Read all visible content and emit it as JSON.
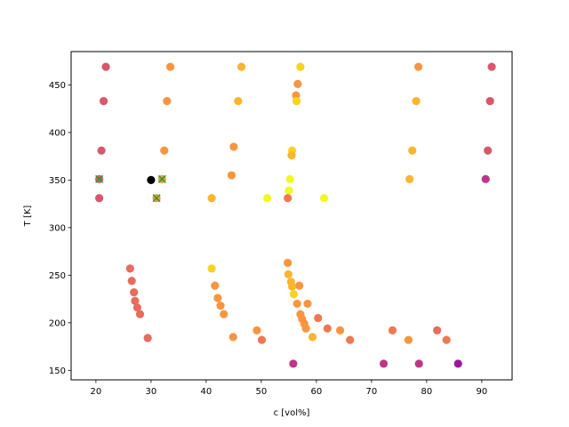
{
  "chart_data": {
    "type": "scatter",
    "title": "",
    "xlabel": "c [vol%]",
    "ylabel": "T [K]",
    "xlim": [
      15.5,
      95.5
    ],
    "ylim": [
      140,
      485
    ],
    "xticks": [
      20,
      30,
      40,
      50,
      60,
      70,
      80,
      90
    ],
    "yticks": [
      150,
      200,
      250,
      300,
      350,
      400,
      450
    ],
    "grid": false,
    "colors": {
      "purple": "#9c179e",
      "magenta": "#bd3786",
      "rose": "#d8576b",
      "salmon": "#e66c5c",
      "coral": "#ed7953",
      "orange": "#f89540",
      "amber": "#fdb42f",
      "gold": "#f9d221",
      "yellow": "#f0f921",
      "black": "#000000",
      "marker_x": "#2ca02c"
    },
    "points": [
      {
        "x": 21.8,
        "y": 469,
        "c": "rose"
      },
      {
        "x": 33.5,
        "y": 469,
        "c": "orange"
      },
      {
        "x": 46.4,
        "y": 469,
        "c": "amber"
      },
      {
        "x": 57.1,
        "y": 469,
        "c": "gold"
      },
      {
        "x": 78.5,
        "y": 469,
        "c": "orange"
      },
      {
        "x": 91.8,
        "y": 469,
        "c": "rose"
      },
      {
        "x": 56.6,
        "y": 451,
        "c": "orange"
      },
      {
        "x": 56.3,
        "y": 439,
        "c": "orange"
      },
      {
        "x": 21.4,
        "y": 433,
        "c": "rose"
      },
      {
        "x": 32.9,
        "y": 433,
        "c": "orange"
      },
      {
        "x": 45.8,
        "y": 433,
        "c": "amber"
      },
      {
        "x": 56.4,
        "y": 433,
        "c": "gold"
      },
      {
        "x": 78.1,
        "y": 433,
        "c": "amber"
      },
      {
        "x": 91.5,
        "y": 433,
        "c": "rose"
      },
      {
        "x": 45.0,
        "y": 385,
        "c": "orange"
      },
      {
        "x": 21.0,
        "y": 381,
        "c": "rose"
      },
      {
        "x": 32.4,
        "y": 381,
        "c": "orange"
      },
      {
        "x": 55.6,
        "y": 381,
        "c": "gold"
      },
      {
        "x": 77.4,
        "y": 381,
        "c": "amber"
      },
      {
        "x": 91.1,
        "y": 381,
        "c": "rose"
      },
      {
        "x": 55.5,
        "y": 376,
        "c": "amber"
      },
      {
        "x": 44.6,
        "y": 355,
        "c": "orange"
      },
      {
        "x": 20.6,
        "y": 351,
        "c": "rose"
      },
      {
        "x": 32.0,
        "y": 351,
        "c": "orange"
      },
      {
        "x": 30.0,
        "y": 350,
        "c": "black"
      },
      {
        "x": 55.2,
        "y": 351,
        "c": "yellow"
      },
      {
        "x": 76.9,
        "y": 351,
        "c": "amber"
      },
      {
        "x": 90.7,
        "y": 351,
        "c": "magenta"
      },
      {
        "x": 55.0,
        "y": 339,
        "c": "yellow"
      },
      {
        "x": 20.6,
        "y": 331,
        "c": "rose"
      },
      {
        "x": 31.0,
        "y": 331,
        "c": "orange"
      },
      {
        "x": 41.0,
        "y": 331,
        "c": "amber"
      },
      {
        "x": 51.1,
        "y": 331,
        "c": "yellow"
      },
      {
        "x": 54.8,
        "y": 331,
        "c": "coral"
      },
      {
        "x": 61.4,
        "y": 331,
        "c": "yellow"
      },
      {
        "x": 54.8,
        "y": 263,
        "c": "orange"
      },
      {
        "x": 26.2,
        "y": 257,
        "c": "salmon"
      },
      {
        "x": 41.0,
        "y": 257,
        "c": "gold"
      },
      {
        "x": 54.9,
        "y": 251,
        "c": "amber"
      },
      {
        "x": 26.5,
        "y": 244,
        "c": "salmon"
      },
      {
        "x": 55.4,
        "y": 243,
        "c": "amber"
      },
      {
        "x": 41.6,
        "y": 239,
        "c": "orange"
      },
      {
        "x": 56.9,
        "y": 239,
        "c": "orange"
      },
      {
        "x": 55.6,
        "y": 238,
        "c": "amber"
      },
      {
        "x": 26.9,
        "y": 232,
        "c": "salmon"
      },
      {
        "x": 55.9,
        "y": 230,
        "c": "gold"
      },
      {
        "x": 42.1,
        "y": 226,
        "c": "orange"
      },
      {
        "x": 27.1,
        "y": 223,
        "c": "salmon"
      },
      {
        "x": 56.5,
        "y": 220,
        "c": "orange"
      },
      {
        "x": 58.4,
        "y": 220,
        "c": "orange"
      },
      {
        "x": 42.6,
        "y": 218,
        "c": "orange"
      },
      {
        "x": 27.5,
        "y": 216,
        "c": "salmon"
      },
      {
        "x": 28.0,
        "y": 209,
        "c": "salmon"
      },
      {
        "x": 43.2,
        "y": 209,
        "c": "orange"
      },
      {
        "x": 57.1,
        "y": 209,
        "c": "orange"
      },
      {
        "x": 57.4,
        "y": 204,
        "c": "orange"
      },
      {
        "x": 60.3,
        "y": 205,
        "c": "coral"
      },
      {
        "x": 57.8,
        "y": 199,
        "c": "orange"
      },
      {
        "x": 58.1,
        "y": 194,
        "c": "orange"
      },
      {
        "x": 62.0,
        "y": 194,
        "c": "coral"
      },
      {
        "x": 64.3,
        "y": 192,
        "c": "orange"
      },
      {
        "x": 49.2,
        "y": 192,
        "c": "orange"
      },
      {
        "x": 73.8,
        "y": 192,
        "c": "coral"
      },
      {
        "x": 81.9,
        "y": 192,
        "c": "salmon"
      },
      {
        "x": 29.4,
        "y": 184,
        "c": "salmon"
      },
      {
        "x": 44.9,
        "y": 185,
        "c": "orange"
      },
      {
        "x": 59.3,
        "y": 185,
        "c": "amber"
      },
      {
        "x": 50.1,
        "y": 182,
        "c": "coral"
      },
      {
        "x": 66.1,
        "y": 182,
        "c": "coral"
      },
      {
        "x": 76.7,
        "y": 182,
        "c": "orange"
      },
      {
        "x": 83.6,
        "y": 182,
        "c": "coral"
      },
      {
        "x": 55.8,
        "y": 157,
        "c": "magenta"
      },
      {
        "x": 72.2,
        "y": 157,
        "c": "magenta"
      },
      {
        "x": 78.6,
        "y": 157,
        "c": "magenta"
      },
      {
        "x": 85.7,
        "y": 157,
        "c": "purple"
      }
    ],
    "x_markers": [
      {
        "x": 20.6,
        "y": 351
      },
      {
        "x": 32.0,
        "y": 351
      },
      {
        "x": 31.0,
        "y": 331
      }
    ]
  }
}
